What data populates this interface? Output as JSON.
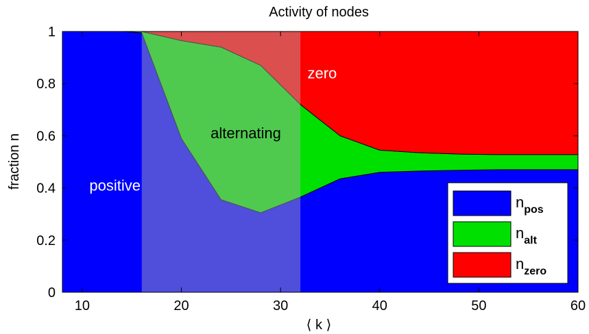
{
  "chart_data": {
    "type": "area",
    "title": "Activity of nodes",
    "xlabel": "⟨ k ⟩",
    "ylabel": "fraction n",
    "xlim": [
      8,
      60
    ],
    "ylim": [
      0,
      1
    ],
    "xticks": [
      10,
      20,
      30,
      40,
      50,
      60
    ],
    "yticks": [
      0,
      0.2,
      0.4,
      0.6,
      0.8,
      1
    ],
    "x": [
      8,
      10,
      12,
      14,
      16,
      20,
      24,
      28,
      32,
      36,
      40,
      44,
      48,
      52,
      56,
      60
    ],
    "stacking_order": [
      "n_pos",
      "n_alt",
      "n_zero"
    ],
    "series": [
      {
        "name": "n_pos",
        "legend_main": "n",
        "legend_sub": "pos",
        "color": "#0000ff",
        "values": [
          1.0,
          1.0,
          1.0,
          1.0,
          0.995,
          0.59,
          0.355,
          0.305,
          0.365,
          0.435,
          0.46,
          0.465,
          0.468,
          0.47,
          0.47,
          0.47
        ]
      },
      {
        "name": "n_alt",
        "legend_main": "n",
        "legend_sub": "alt",
        "color": "#00e000",
        "values": [
          0.0,
          0.0,
          0.0,
          0.0,
          0.005,
          0.375,
          0.585,
          0.565,
          0.355,
          0.165,
          0.085,
          0.07,
          0.062,
          0.058,
          0.058,
          0.058
        ]
      },
      {
        "name": "n_zero",
        "legend_main": "n",
        "legend_sub": "zero",
        "color": "#ff0000",
        "values": [
          0.0,
          0.0,
          0.0,
          0.0,
          0.0,
          0.035,
          0.06,
          0.13,
          0.28,
          0.4,
          0.455,
          0.465,
          0.47,
          0.472,
          0.472,
          0.472
        ]
      }
    ],
    "shaded_region": {
      "x_range": [
        16,
        32
      ],
      "color": "#b0b0b0",
      "opacity": 0.45
    },
    "annotations": [
      {
        "text": "positive",
        "x": 13.3,
        "y": 0.39
      },
      {
        "text": "alternating",
        "x": 26.5,
        "y": 0.59
      },
      {
        "text": "zero",
        "x": 34.2,
        "y": 0.82
      }
    ],
    "legend_position": "bottom-right",
    "grid": false
  }
}
